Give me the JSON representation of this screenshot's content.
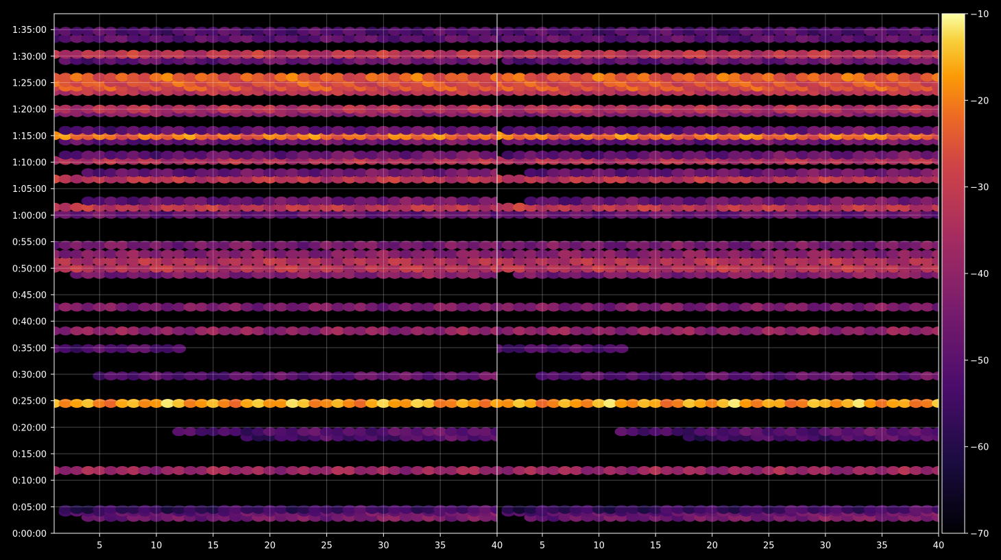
{
  "chart_data": {
    "type": "heatmap",
    "title": "",
    "xlabel": "",
    "ylabel": "",
    "panels": 2,
    "x_range": [
      1,
      40
    ],
    "x_ticks": [
      5,
      10,
      15,
      20,
      25,
      30,
      35,
      40
    ],
    "y_range_seconds": [
      0,
      5880
    ],
    "y_tick_labels": [
      "0:00:00",
      "0:05:00",
      "0:10:00",
      "0:15:00",
      "0:20:00",
      "0:25:00",
      "0:30:00",
      "0:35:00",
      "0:40:00",
      "0:45:00",
      "0:50:00",
      "0:55:00",
      "1:00:00",
      "1:05:00",
      "1:10:00",
      "1:15:00",
      "1:20:00",
      "1:25:00",
      "1:30:00",
      "1:35:00"
    ],
    "y_tick_values_seconds": [
      0,
      300,
      600,
      900,
      1200,
      1500,
      1800,
      2100,
      2400,
      2700,
      3000,
      3300,
      3600,
      3900,
      4200,
      4500,
      4800,
      5100,
      5400,
      5700
    ],
    "colorbar": {
      "colormap": "inferno",
      "range": [
        -70,
        -10
      ],
      "ticks": [
        -70,
        -60,
        -50,
        -40,
        -30,
        -20,
        -10
      ],
      "tick_labels": [
        "−70",
        "−60",
        "−50",
        "−40",
        "−30",
        "−20",
        "−10"
      ]
    },
    "grid": true,
    "bands": [
      {
        "time_s": 180,
        "level": -42,
        "from_x": 4,
        "to_x": 40
      },
      {
        "time_s": 240,
        "level": -45,
        "from_x": 2,
        "to_x": 40
      },
      {
        "time_s": 270,
        "level": -53,
        "from_x": 2,
        "to_x": 40
      },
      {
        "time_s": 710,
        "level": -38,
        "from_x": 1,
        "to_x": 40
      },
      {
        "time_s": 1090,
        "level": -50,
        "from_x": 18,
        "to_x": 40
      },
      {
        "time_s": 1150,
        "level": -48,
        "from_x": 12,
        "to_x": 40
      },
      {
        "time_s": 1470,
        "level": -17,
        "from_x": 1,
        "to_x": 40
      },
      {
        "time_s": 1780,
        "level": -47,
        "from_x": 5,
        "to_x": 40
      },
      {
        "time_s": 2090,
        "level": -52,
        "from_x": 1,
        "to_x": 12
      },
      {
        "time_s": 2290,
        "level": -40,
        "from_x": 1,
        "to_x": 40
      },
      {
        "time_s": 2560,
        "level": -44,
        "from_x": 1,
        "to_x": 40
      },
      {
        "time_s": 2930,
        "level": -40,
        "from_x": 3,
        "to_x": 40
      },
      {
        "time_s": 3000,
        "level": -33,
        "from_x": 1,
        "to_x": 40
      },
      {
        "time_s": 3080,
        "level": -34,
        "from_x": 1,
        "to_x": 40
      },
      {
        "time_s": 3160,
        "level": -42,
        "from_x": 1,
        "to_x": 40
      },
      {
        "time_s": 3260,
        "level": -45,
        "from_x": 1,
        "to_x": 40
      },
      {
        "time_s": 3610,
        "level": -48,
        "from_x": 1,
        "to_x": 40
      },
      {
        "time_s": 3690,
        "level": -32,
        "from_x": 1,
        "to_x": 40
      },
      {
        "time_s": 3760,
        "level": -44,
        "from_x": 4,
        "to_x": 40
      },
      {
        "time_s": 4010,
        "level": -32,
        "from_x": 1,
        "to_x": 40
      },
      {
        "time_s": 4080,
        "level": -44,
        "from_x": 4,
        "to_x": 40
      },
      {
        "time_s": 4220,
        "level": -34,
        "from_x": 1,
        "to_x": 40
      },
      {
        "time_s": 4280,
        "level": -45,
        "from_x": 2,
        "to_x": 40
      },
      {
        "time_s": 4440,
        "level": -45,
        "from_x": 2,
        "to_x": 40
      },
      {
        "time_s": 4500,
        "level": -22,
        "from_x": 1,
        "to_x": 40
      },
      {
        "time_s": 4560,
        "level": -46,
        "from_x": 2,
        "to_x": 40
      },
      {
        "time_s": 4760,
        "level": -42,
        "from_x": 1,
        "to_x": 40
      },
      {
        "time_s": 4800,
        "level": -34,
        "from_x": 1,
        "to_x": 40
      },
      {
        "time_s": 5000,
        "level": -33,
        "from_x": 1,
        "to_x": 40
      },
      {
        "time_s": 5050,
        "level": -26,
        "from_x": 1,
        "to_x": 40
      },
      {
        "time_s": 5100,
        "level": -26,
        "from_x": 1,
        "to_x": 40
      },
      {
        "time_s": 5160,
        "level": -24,
        "from_x": 1,
        "to_x": 40
      },
      {
        "time_s": 5350,
        "level": -45,
        "from_x": 2,
        "to_x": 40
      },
      {
        "time_s": 5420,
        "level": -32,
        "from_x": 1,
        "to_x": 40
      },
      {
        "time_s": 5600,
        "level": -50,
        "from_x": 1,
        "to_x": 40
      },
      {
        "time_s": 5680,
        "level": -52,
        "from_x": 1,
        "to_x": 40
      }
    ]
  }
}
